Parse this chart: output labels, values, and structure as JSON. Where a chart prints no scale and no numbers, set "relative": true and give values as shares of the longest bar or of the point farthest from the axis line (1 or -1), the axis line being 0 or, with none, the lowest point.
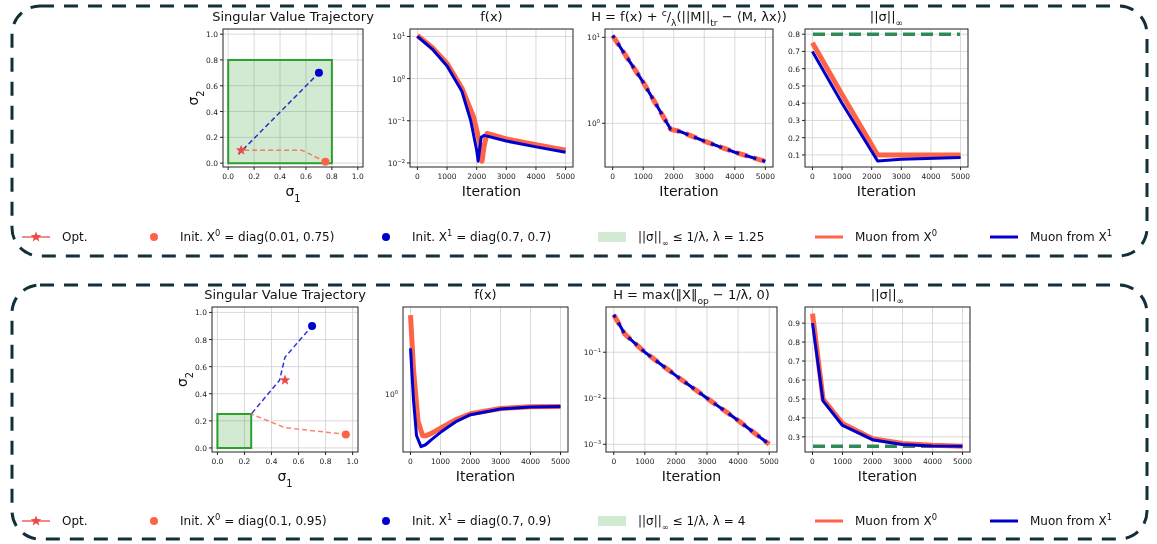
{
  "chart_data": [
    {
      "type": "scatter",
      "title": "Singular Value Trajectory",
      "xlabel": "σ$_{1}$",
      "ylabel": "σ$_{2}$",
      "xlim": [
        -0.04,
        1.04
      ],
      "ylim": [
        -0.03,
        1.04
      ],
      "xticks": [
        {
          "value": 0,
          "label": "0.0"
        },
        {
          "value": 0.2,
          "label": "0.2"
        },
        {
          "value": 0.4,
          "label": "0.4"
        },
        {
          "value": 0.6,
          "label": "0.6"
        },
        {
          "value": 0.8,
          "label": "0.8"
        },
        {
          "value": 1,
          "label": "1.0"
        }
      ],
      "yticks": [
        {
          "value": 0,
          "label": "0.0"
        },
        {
          "value": 0.2,
          "label": "0.2"
        },
        {
          "value": 0.4,
          "label": "0.4"
        },
        {
          "value": 0.6,
          "label": "0.6"
        },
        {
          "value": 0.8,
          "label": "0.8"
        },
        {
          "value": 1,
          "label": "1.0"
        }
      ],
      "grid": true,
      "legend": "bottom",
      "series": [
        {
          "type": "scatter",
          "name": "Opt.",
          "color": "#f04848",
          "marker": "star",
          "line_style": "solid",
          "x": [
            0.1
          ],
          "values": [
            0.1
          ]
        },
        {
          "type": "scatter",
          "name": "Init. X$^{0}$ = diag(0.01, 0.75)",
          "color": "#ff6347",
          "marker": "circle",
          "x": [
            0.75
          ],
          "values": [
            0.01
          ]
        },
        {
          "type": "scatter",
          "name": "Init. X$^{1}$ = diag(0.7, 0.7)",
          "color": "#0000cd",
          "marker": "circle",
          "x": [
            0.7
          ],
          "values": [
            0.7
          ]
        },
        {
          "type": "area",
          "name": "||σ||$_{∞}$ ≤ 1/λ, λ = 1.25",
          "color": "#2ca02c",
          "x": [
            0,
            0.8
          ],
          "values": [
            0.8,
            0.8
          ]
        },
        {
          "type": "line",
          "color": "#ff6347",
          "line_style": "dashed",
          "x": [
            0.75,
            0.57,
            0.1
          ],
          "values": [
            0.01,
            0.1,
            0.1
          ]
        },
        {
          "type": "line",
          "color": "#0000cd",
          "line_style": "dashed",
          "x": [
            0.7,
            0.08
          ],
          "values": [
            0.7,
            0.07
          ]
        }
      ]
    },
    {
      "type": "line",
      "title": "f(x)",
      "xlabel": "Iteration",
      "log": true,
      "xlim": [
        -250,
        5250
      ],
      "xticks": [
        0,
        1000,
        2000,
        3000,
        4000,
        5000
      ],
      "ylim": [
        0.008,
        15
      ],
      "yticks": [
        {
          "value": 0.01,
          "label": "10$^{−2}$"
        },
        {
          "value": 0.1,
          "label": "10$^{−1}$"
        },
        {
          "value": 1,
          "label": "10$^{0}$"
        },
        {
          "value": 10,
          "label": "10$^{1}$"
        }
      ],
      "grid": true,
      "legend": "bottom",
      "series": [
        {
          "name": "Muon from X$^{0}$",
          "color": "#ff6347",
          "line_style": "solid",
          "x": [
            0,
            500,
            1000,
            1500,
            1900,
            2100,
            2180,
            2250,
            2350,
            3000,
            4000,
            5000
          ],
          "values": [
            10.5,
            5.5,
            2.3,
            0.6,
            0.12,
            0.03,
            0.011,
            0.025,
            0.05,
            0.037,
            0.027,
            0.02
          ]
        },
        {
          "name": "Muon from X$^{1}$",
          "color": "#0000cd",
          "line_style": "solid",
          "x": [
            0,
            500,
            1000,
            1500,
            1800,
            2000,
            2050,
            2150,
            2250,
            3000,
            4000,
            5000
          ],
          "values": [
            10,
            5,
            2,
            0.5,
            0.1,
            0.02,
            0.011,
            0.04,
            0.045,
            0.033,
            0.024,
            0.018
          ]
        }
      ]
    },
    {
      "type": "line",
      "title": "H = f(x) + $^{c}$/$_{λ}$(||M||$_{tr}$ − ⟨M, λx⟩)",
      "xlabel": "Iteration",
      "log": true,
      "xlim": [
        -250,
        5250
      ],
      "xticks": [
        0,
        1000,
        2000,
        3000,
        4000,
        5000
      ],
      "ylim": [
        0.31,
        12.5
      ],
      "yticks": [
        {
          "value": 1,
          "label": "10$^{0}$"
        },
        {
          "value": 10,
          "label": "10$^{1}$"
        }
      ],
      "grid": true,
      "series": [
        {
          "color": "#ff6347",
          "line_style": "dashed",
          "x": [
            0,
            1000,
            1900,
            2100,
            2300,
            3000,
            4000,
            5000
          ],
          "values": [
            10.5,
            3,
            0.85,
            0.82,
            0.78,
            0.62,
            0.46,
            0.36
          ]
        },
        {
          "color": "#0000cd",
          "line_style": "dashed",
          "x": [
            0,
            1000,
            1900,
            2100,
            2300,
            3000,
            4000,
            5000
          ],
          "values": [
            10.5,
            3,
            0.85,
            0.82,
            0.78,
            0.62,
            0.46,
            0.36
          ]
        }
      ]
    },
    {
      "type": "line",
      "title": "||σ||$_{∞}$",
      "xlabel": "Iteration",
      "xlim": [
        -250,
        5250
      ],
      "xticks": [
        0,
        1000,
        2000,
        3000,
        4000,
        5000
      ],
      "ylim": [
        0.03,
        0.83
      ],
      "yticks": [
        0.1,
        0.2,
        0.3,
        0.4,
        0.5,
        0.6,
        0.7,
        0.8
      ],
      "grid": true,
      "ref_lines": [
        {
          "axis": "y",
          "value": 0.8,
          "color": "#2e8b57",
          "line_style": "dashed"
        }
      ],
      "series": [
        {
          "color": "#ff6347",
          "line_style": "solid",
          "x": [
            0,
            1000,
            2200,
            3000,
            5000
          ],
          "values": [
            0.75,
            0.45,
            0.1,
            0.1,
            0.1
          ]
        },
        {
          "color": "#0000cd",
          "line_style": "solid",
          "x": [
            0,
            1000,
            2200,
            3000,
            5000
          ],
          "values": [
            0.7,
            0.4,
            0.065,
            0.075,
            0.085
          ]
        }
      ]
    },
    {
      "type": "scatter",
      "title": "Singular Value Trajectory",
      "xlabel": "σ$_{1}$",
      "ylabel": "σ$_{2}$",
      "xlim": [
        -0.04,
        1.04
      ],
      "ylim": [
        -0.03,
        1.04
      ],
      "xticks": [
        {
          "value": 0,
          "label": "0.0"
        },
        {
          "value": 0.2,
          "label": "0.2"
        },
        {
          "value": 0.4,
          "label": "0.4"
        },
        {
          "value": 0.6,
          "label": "0.6"
        },
        {
          "value": 0.8,
          "label": "0.8"
        },
        {
          "value": 1,
          "label": "1.0"
        }
      ],
      "yticks": [
        {
          "value": 0,
          "label": "0.0"
        },
        {
          "value": 0.2,
          "label": "0.2"
        },
        {
          "value": 0.4,
          "label": "0.4"
        },
        {
          "value": 0.6,
          "label": "0.6"
        },
        {
          "value": 0.8,
          "label": "0.8"
        },
        {
          "value": 1,
          "label": "1.0"
        }
      ],
      "grid": true,
      "legend": "bottom",
      "series": [
        {
          "type": "scatter",
          "name": "Opt.",
          "color": "#f04848",
          "marker": "star",
          "line_style": "solid",
          "x": [
            0.5
          ],
          "values": [
            0.5
          ]
        },
        {
          "type": "scatter",
          "name": "Init. X$^{0}$ = diag(0.1, 0.95)",
          "color": "#ff6347",
          "marker": "circle",
          "x": [
            0.95
          ],
          "values": [
            0.1
          ]
        },
        {
          "type": "scatter",
          "name": "Init. X$^{1}$ = diag(0.7, 0.9)",
          "color": "#0000cd",
          "marker": "circle",
          "x": [
            0.7
          ],
          "values": [
            0.9
          ]
        },
        {
          "type": "area",
          "name": "||σ||$_{∞}$ ≤ 1/λ, λ = 4",
          "color": "#2ca02c",
          "x": [
            0,
            0.25
          ],
          "values": [
            0.25,
            0.25
          ]
        },
        {
          "type": "line",
          "color": "#ff6347",
          "line_style": "dashed",
          "x": [
            0.95,
            0.5,
            0.25
          ],
          "values": [
            0.1,
            0.15,
            0.25
          ]
        },
        {
          "type": "line",
          "color": "#0000cd",
          "line_style": "dashed",
          "x": [
            0.7,
            0.5,
            0.46,
            0.25
          ],
          "values": [
            0.9,
            0.67,
            0.5,
            0.25
          ]
        }
      ]
    },
    {
      "type": "line",
      "title": "f(x)",
      "xlabel": "Iteration",
      "relative": true,
      "annotations": [
        "10$^{0}$"
      ],
      "xlim": [
        -250,
        5250
      ],
      "xticks": [
        0,
        1000,
        2000,
        3000,
        4000,
        5000
      ],
      "grid": true,
      "legend": "bottom",
      "series": [
        {
          "name": "Muon from X$^{0}$",
          "color": "#ff6347",
          "line_style": "solid",
          "x": [
            0,
            100,
            250,
            400,
            500,
            700,
            1000,
            1500,
            2000,
            3000,
            4000,
            5000
          ],
          "values": [
            1,
            0.606,
            0.227,
            0.121,
            0.118,
            0.136,
            0.174,
            0.235,
            0.28,
            0.318,
            0.33,
            0.333
          ]
        },
        {
          "name": "Muon from X$^{1}$",
          "color": "#0000cd",
          "line_style": "solid",
          "x": [
            0,
            100,
            200,
            350,
            500,
            700,
            1000,
            1500,
            2000,
            3000,
            4000,
            5000
          ],
          "values": [
            0.758,
            0.379,
            0.121,
            0.039,
            0.053,
            0.091,
            0.144,
            0.22,
            0.273,
            0.315,
            0.329,
            0.333
          ]
        }
      ]
    },
    {
      "type": "line",
      "title": "H = max(‖X‖$_{op}$ − 1/λ, 0)",
      "xlabel": "Iteration",
      "log": true,
      "xlim": [
        -250,
        5250
      ],
      "xticks": [
        0,
        1000,
        2000,
        3000,
        4000,
        5000
      ],
      "ylim": [
        0.00068,
        0.96
      ],
      "yticks": [
        {
          "value": 0.001,
          "label": "10$^{−3}$"
        },
        {
          "value": 0.01,
          "label": "10$^{−2}$"
        },
        {
          "value": 0.1,
          "label": "10$^{−1}$"
        }
      ],
      "grid": true,
      "series": [
        {
          "color": "#ff6347",
          "line_style": "dashed",
          "x": [
            0,
            350,
            1000,
            2000,
            3000,
            4000,
            5000
          ],
          "values": [
            0.65,
            0.25,
            0.1,
            0.031,
            0.01,
            0.0033,
            0.001
          ]
        },
        {
          "color": "#0000cd",
          "line_style": "dashed",
          "x": [
            0,
            350,
            1000,
            2000,
            3000,
            4000,
            5000
          ],
          "values": [
            0.65,
            0.25,
            0.1,
            0.031,
            0.01,
            0.0033,
            0.001
          ]
        }
      ]
    },
    {
      "type": "line",
      "title": "||σ||$_{∞}$",
      "xlabel": "Iteration",
      "xlim": [
        -250,
        5250
      ],
      "xticks": [
        0,
        1000,
        2000,
        3000,
        4000,
        5000
      ],
      "ylim": [
        0.22,
        0.985
      ],
      "yticks": [
        0.3,
        0.4,
        0.5,
        0.6,
        0.7,
        0.8,
        0.9
      ],
      "grid": true,
      "ref_lines": [
        {
          "axis": "y",
          "value": 0.25,
          "color": "#2e8b57",
          "line_style": "dashed"
        }
      ],
      "series": [
        {
          "color": "#ff6347",
          "line_style": "solid",
          "x": [
            0,
            350,
            1000,
            2000,
            3000,
            4000,
            5000
          ],
          "values": [
            0.95,
            0.5,
            0.37,
            0.29,
            0.265,
            0.255,
            0.25
          ]
        },
        {
          "color": "#0000cd",
          "line_style": "solid",
          "x": [
            0,
            350,
            1000,
            2000,
            3000,
            4000,
            5000
          ],
          "values": [
            0.9,
            0.49,
            0.36,
            0.285,
            0.26,
            0.252,
            0.25
          ]
        }
      ]
    }
  ]
}
